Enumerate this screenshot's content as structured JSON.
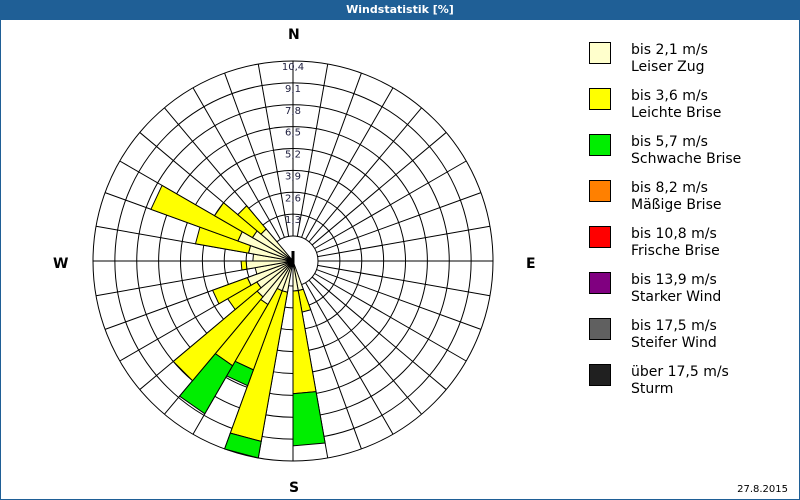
{
  "window": {
    "title": "Windstatistik [%]"
  },
  "footer": {
    "date": "27.8.2015"
  },
  "compass": {
    "n": "N",
    "e": "E",
    "s": "S",
    "w": "W"
  },
  "legend": [
    {
      "range": "bis 2,1 m/s",
      "name": "Leiser Zug",
      "color": "#ffffcc"
    },
    {
      "range": "bis 3,6 m/s",
      "name": "Leichte Brise",
      "color": "#ffff00"
    },
    {
      "range": "bis 5,7 m/s",
      "name": "Schwache Brise",
      "color": "#00ee00"
    },
    {
      "range": "bis 8,2 m/s",
      "name": "Mäßige Brise",
      "color": "#ff8000"
    },
    {
      "range": "bis 10,8 m/s",
      "name": "Frische Brise",
      "color": "#ff0000"
    },
    {
      "range": "bis 13,9 m/s",
      "name": "Starker Wind",
      "color": "#800080"
    },
    {
      "range": "bis 17,5 m/s",
      "name": "Steifer Wind",
      "color": "#606060"
    },
    {
      "range": "über 17,5 m/s",
      "name": "Sturm",
      "color": "#202020"
    }
  ],
  "chart_data": {
    "type": "wind-rose",
    "title": "Windstatistik [%]",
    "radial_ticks": [
      "1,3",
      "2,6",
      "3,9",
      "5,2",
      "6,5",
      "7,8",
      "9,1",
      "10,4"
    ],
    "radial_max": 10.4,
    "sector_width_deg": 10,
    "directions_labels": [
      "N",
      "E",
      "S",
      "W"
    ],
    "legend_position": "right",
    "speed_classes": [
      "bis 2,1 m/s",
      "bis 3,6 m/s",
      "bis 5,7 m/s",
      "bis 8,2 m/s",
      "bis 10,8 m/s",
      "bis 13,9 m/s",
      "bis 17,5 m/s",
      "über 17,5 m/s"
    ],
    "sectors": [
      {
        "from": 160,
        "to": 170,
        "values": [
          0.3,
          1.3,
          0,
          0,
          0,
          0,
          0,
          0
        ]
      },
      {
        "from": 170,
        "to": 180,
        "values": [
          0.3,
          6.1,
          3.1,
          0,
          0,
          0,
          0,
          0
        ]
      },
      {
        "from": 190,
        "to": 200,
        "values": [
          0.4,
          9.0,
          1.0,
          0,
          0,
          0,
          0,
          0
        ]
      },
      {
        "from": 200,
        "to": 210,
        "values": [
          0.4,
          5.0,
          1.0,
          0,
          0,
          0,
          0,
          0
        ]
      },
      {
        "from": 210,
        "to": 220,
        "values": [
          1.5,
          4.2,
          3.3,
          0,
          0,
          0,
          0,
          0
        ]
      },
      {
        "from": 220,
        "to": 230,
        "values": [
          1.3,
          6.5,
          0,
          0,
          0,
          0,
          0,
          0
        ]
      },
      {
        "from": 230,
        "to": 240,
        "values": [
          1.0,
          2.0,
          0,
          0,
          0,
          0,
          0,
          0
        ]
      },
      {
        "from": 240,
        "to": 250,
        "values": [
          1.4,
          2.2,
          0,
          0,
          0,
          0,
          0,
          0
        ]
      },
      {
        "from": 250,
        "to": 260,
        "values": [
          0.8,
          0,
          0,
          0,
          0,
          0,
          0,
          0
        ]
      },
      {
        "from": 260,
        "to": 270,
        "values": [
          1.3,
          0.3,
          0,
          0,
          0,
          0,
          0,
          0
        ]
      },
      {
        "from": 270,
        "to": 280,
        "values": [
          0.9,
          0,
          0,
          0,
          0,
          0,
          0,
          0
        ]
      },
      {
        "from": 280,
        "to": 290,
        "values": [
          1.2,
          3.2,
          0,
          0,
          0,
          0,
          0,
          0
        ]
      },
      {
        "from": 290,
        "to": 300,
        "values": [
          2.0,
          5.5,
          0,
          0,
          0,
          0,
          0,
          0
        ]
      },
      {
        "from": 300,
        "to": 310,
        "values": [
          1.3,
          2.6,
          0,
          0,
          0,
          0,
          0,
          0
        ]
      },
      {
        "from": 310,
        "to": 320,
        "values": [
          1.0,
          1.8,
          0,
          0,
          0,
          0,
          0,
          0
        ]
      }
    ]
  }
}
